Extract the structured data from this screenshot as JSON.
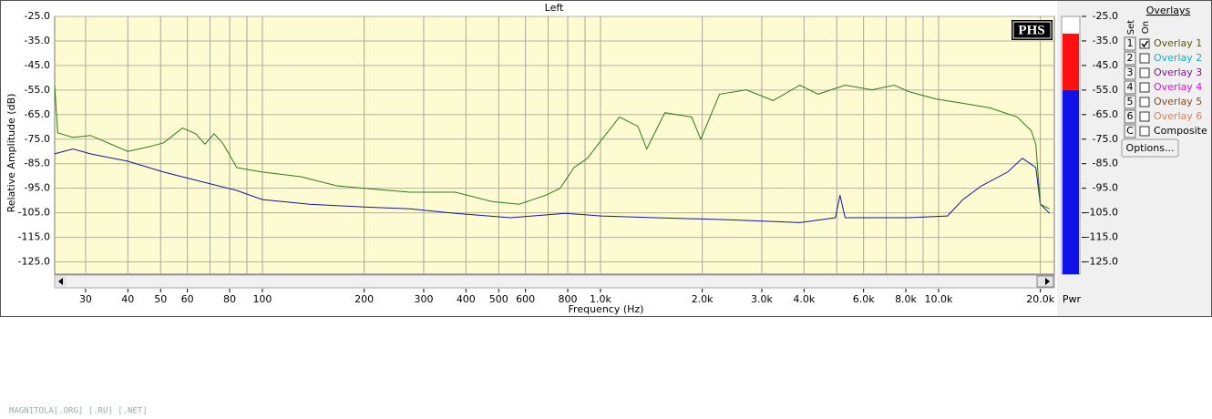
{
  "chart_data": {
    "type": "line",
    "title": "Left",
    "xlabel": "Frequency (Hz)",
    "ylabel": "Relative Amplitude (dB)",
    "xscale": "log",
    "xlim": [
      24.3,
      22000
    ],
    "ylim": [
      -130,
      -25
    ],
    "grid": true,
    "background": "#fcfbd2",
    "xticks": [
      30,
      40,
      50,
      60,
      80,
      100,
      200,
      300,
      400,
      500,
      600,
      800,
      {
        "value": 1000,
        "label": "1.0k"
      },
      {
        "value": 2000,
        "label": "2.0k"
      },
      {
        "value": 3000,
        "label": "3.0k"
      },
      {
        "value": 4000,
        "label": "4.0k"
      },
      {
        "value": 6000,
        "label": "6.0k"
      },
      {
        "value": 8000,
        "label": "8.0k"
      },
      {
        "value": 10000,
        "label": "10.0k"
      },
      {
        "value": 20000,
        "label": "20.0k"
      }
    ],
    "xminor": [
      70,
      90,
      700,
      900,
      5000,
      7000,
      9000
    ],
    "yticks": [
      {
        "value": -25,
        "label": "-25.0"
      },
      {
        "value": -35,
        "label": "-35.0"
      },
      {
        "value": -45,
        "label": "-45.0"
      },
      {
        "value": -55,
        "label": "-55.0"
      },
      {
        "value": -65,
        "label": "-65.0"
      },
      {
        "value": -75,
        "label": "-75.0"
      },
      {
        "value": -85,
        "label": "-85.0"
      },
      {
        "value": -95,
        "label": "-95.0"
      },
      {
        "value": -105,
        "label": "-105.0"
      },
      {
        "value": -115,
        "label": "-115.0"
      },
      {
        "value": -125,
        "label": "-125.0"
      }
    ],
    "series": [
      {
        "name": "Overlay 1",
        "color": "#2f7a1c",
        "x": [
          24.3,
          24.8,
          27.5,
          31,
          40,
          46.6,
          51,
          58,
          63.5,
          67.6,
          72,
          76.6,
          84,
          100,
          130,
          166,
          200,
          273,
          372,
          477,
          575,
          690,
          760,
          835,
          915,
          1006,
          1138,
          1290,
          1370,
          1550,
          1860,
          1980,
          2250,
          2700,
          3240,
          3890,
          4400,
          5290,
          6350,
          7400,
          8150,
          9800,
          11800,
          14200,
          17100,
          18800,
          19400,
          20000,
          21300
        ],
        "values": [
          -53,
          -72.4,
          -74.3,
          -73.5,
          -80,
          -78,
          -76.5,
          -70.5,
          -72.8,
          -77,
          -72.8,
          -77,
          -86.6,
          -88.4,
          -90.3,
          -94,
          -95,
          -96.6,
          -96.6,
          -100.4,
          -101.5,
          -97.8,
          -95,
          -86.6,
          -82.8,
          -75.4,
          -66,
          -69.8,
          -79,
          -64.2,
          -66,
          -75,
          -56.7,
          -54.9,
          -59.3,
          -53,
          -56.7,
          -53,
          -54.9,
          -53,
          -55.6,
          -58.6,
          -60.4,
          -62.3,
          -66,
          -71.6,
          -77.2,
          -101.5,
          -103.4
        ]
      },
      {
        "color": "#1414a0",
        "x": [
          24.3,
          27.5,
          31,
          40,
          51,
          65.6,
          84,
          100,
          138,
          200,
          273,
          372,
          541,
          787,
          1006,
          1450,
          2390,
          3890,
          4950,
          5110,
          5290,
          8150,
          10620,
          11800,
          13400,
          16000,
          17700,
          19400,
          20000,
          21300
        ],
        "values": [
          -81,
          -79,
          -81,
          -84,
          -88.4,
          -92.2,
          -95.9,
          -99.6,
          -101.5,
          -102.6,
          -103.4,
          -105.2,
          -107,
          -105.2,
          -106.3,
          -107,
          -107.8,
          -109,
          -107,
          -97.8,
          -107,
          -107,
          -106.3,
          -99.6,
          -94,
          -88.4,
          -82.8,
          -86.6,
          -101.5,
          -105.2
        ]
      }
    ],
    "meter": {
      "label": "Pwr",
      "value": -32,
      "threshold": -55,
      "high_color": "#ff1010",
      "low_color": "#1010e8"
    }
  },
  "logo": "PHS",
  "overlays": {
    "title": "Overlays",
    "set_label": "Set",
    "on_label": "On",
    "button": "Options...",
    "items": [
      {
        "key": "1",
        "label": "Overlay 1",
        "checked": true,
        "color": "#5a5a10"
      },
      {
        "key": "2",
        "label": "Overlay 2",
        "checked": false,
        "color": "#10b0c8"
      },
      {
        "key": "3",
        "label": "Overlay 3",
        "checked": false,
        "color": "#8a108a"
      },
      {
        "key": "4",
        "label": "Overlay 4",
        "checked": false,
        "color": "#e010e0"
      },
      {
        "key": "5",
        "label": "Overlay 5",
        "checked": false,
        "color": "#8b4a20"
      },
      {
        "key": "6",
        "label": "Overlay 6",
        "checked": false,
        "color": "#d8805a"
      },
      {
        "key": "C",
        "label": "Composite",
        "checked": false,
        "color": "#000000"
      }
    ]
  },
  "watermark": "MAGNITOLA[.ORG] [.RU] [.NET]"
}
